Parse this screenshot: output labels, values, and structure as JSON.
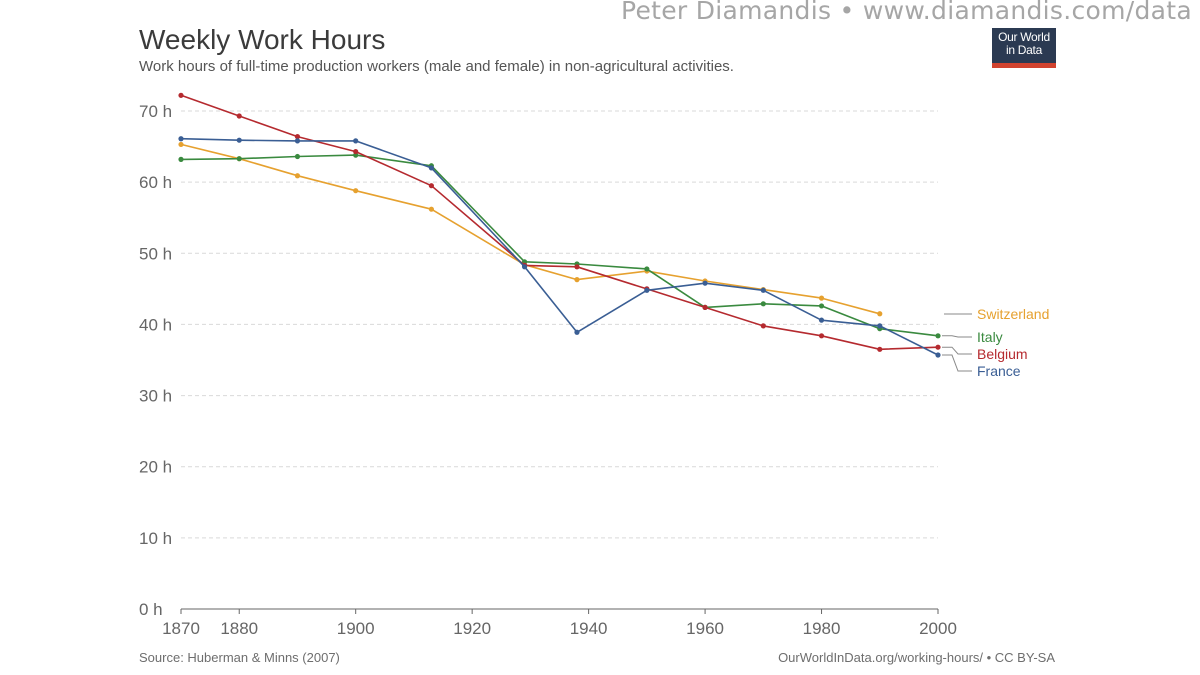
{
  "watermark": "Peter Diamandis  •  www.diamandis.com/data",
  "header": {
    "title": "Weekly Work Hours",
    "subtitle": "Work hours of full-time production workers (male and female) in non-agricultural activities."
  },
  "logo": {
    "line1": "Our World",
    "line2": "in Data"
  },
  "footer": {
    "source": "Source: Huberman & Minns (2007)",
    "credit": "OurWorldInData.org/working-hours/ • CC BY-SA"
  },
  "colors": {
    "switzerland": "#e6a12f",
    "italy": "#3a8a3f",
    "belgium": "#b52a2f",
    "france": "#3a5e94",
    "grid": "#d9d9d9",
    "axis": "#666666"
  },
  "chart_data": {
    "type": "line",
    "title": "Weekly Work Hours",
    "subtitle": "Work hours of full-time production workers (male and female) in non-agricultural activities.",
    "xlim": [
      1870,
      2000
    ],
    "ylim": [
      0,
      70
    ],
    "x_ticks": [
      1870,
      1880,
      1900,
      1920,
      1940,
      1960,
      1980,
      2000
    ],
    "y_ticks": [
      0,
      10,
      20,
      30,
      40,
      50,
      60,
      70
    ],
    "y_tick_labels": [
      "0 h",
      "10 h",
      "20 h",
      "30 h",
      "40 h",
      "50 h",
      "60 h",
      "70 h"
    ],
    "grid": true,
    "legend": "right, end-of-line labels",
    "series": [
      {
        "name": "Switzerland",
        "color": "#e6a12f",
        "points": [
          [
            1870,
            65.3
          ],
          [
            1880,
            63.3
          ],
          [
            1890,
            60.9
          ],
          [
            1900,
            58.8
          ],
          [
            1913,
            56.2
          ],
          [
            1929,
            48.4
          ],
          [
            1938,
            46.3
          ],
          [
            1950,
            47.5
          ],
          [
            1960,
            46.1
          ],
          [
            1970,
            44.9
          ],
          [
            1980,
            43.7
          ],
          [
            1990,
            41.5
          ]
        ]
      },
      {
        "name": "Italy",
        "color": "#3a8a3f",
        "points": [
          [
            1870,
            63.2
          ],
          [
            1880,
            63.3
          ],
          [
            1890,
            63.6
          ],
          [
            1900,
            63.8
          ],
          [
            1913,
            62.3
          ],
          [
            1929,
            48.8
          ],
          [
            1938,
            48.5
          ],
          [
            1950,
            47.8
          ],
          [
            1960,
            42.4
          ],
          [
            1970,
            42.9
          ],
          [
            1980,
            42.6
          ],
          [
            1990,
            39.4
          ],
          [
            2000,
            38.4
          ]
        ]
      },
      {
        "name": "Belgium",
        "color": "#b52a2f",
        "points": [
          [
            1870,
            72.2
          ],
          [
            1880,
            69.3
          ],
          [
            1890,
            66.4
          ],
          [
            1900,
            64.3
          ],
          [
            1913,
            59.5
          ],
          [
            1929,
            48.3
          ],
          [
            1938,
            48.1
          ],
          [
            1950,
            45.0
          ],
          [
            1960,
            42.4
          ],
          [
            1970,
            39.8
          ],
          [
            1980,
            38.4
          ],
          [
            1990,
            36.5
          ],
          [
            2000,
            36.8
          ]
        ]
      },
      {
        "name": "France",
        "color": "#3a5e94",
        "points": [
          [
            1870,
            66.1
          ],
          [
            1880,
            65.9
          ],
          [
            1890,
            65.8
          ],
          [
            1900,
            65.8
          ],
          [
            1913,
            62.0
          ],
          [
            1929,
            48.1
          ],
          [
            1938,
            38.9
          ],
          [
            1950,
            44.8
          ],
          [
            1960,
            45.8
          ],
          [
            1970,
            44.8
          ],
          [
            1980,
            40.6
          ],
          [
            1990,
            39.8
          ],
          [
            2000,
            35.7
          ]
        ]
      }
    ]
  }
}
